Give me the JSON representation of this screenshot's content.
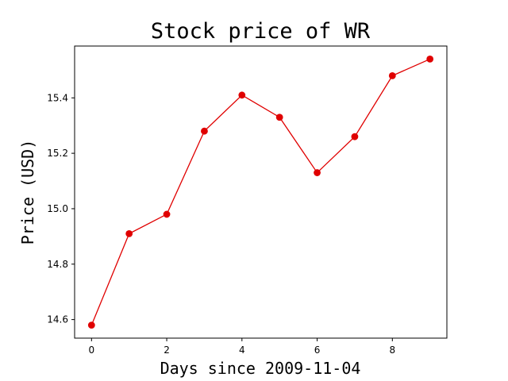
{
  "chart_data": {
    "type": "line",
    "title": "Stock price of WR",
    "xlabel": "Days since 2009-11-04",
    "ylabel": "Price (USD)",
    "x": [
      0,
      1,
      2,
      3,
      4,
      5,
      6,
      7,
      8,
      9
    ],
    "series": [
      {
        "values": [
          14.58,
          14.91,
          14.98,
          15.28,
          15.41,
          15.33,
          15.13,
          15.26,
          15.48,
          15.54
        ],
        "color": "#e00000"
      }
    ],
    "xlim": [
      -0.45,
      9.45
    ],
    "ylim": [
      14.533,
      15.587
    ],
    "xticks": [
      0,
      2,
      4,
      6,
      8
    ],
    "xtick_labels": [
      "0",
      "2",
      "4",
      "6",
      "8"
    ],
    "yticks": [
      14.6,
      14.8,
      15.0,
      15.2,
      15.4
    ],
    "ytick_labels": [
      "14.6",
      "14.8",
      "15.0",
      "15.2",
      "15.4"
    ],
    "grid": false,
    "legend": "none"
  }
}
